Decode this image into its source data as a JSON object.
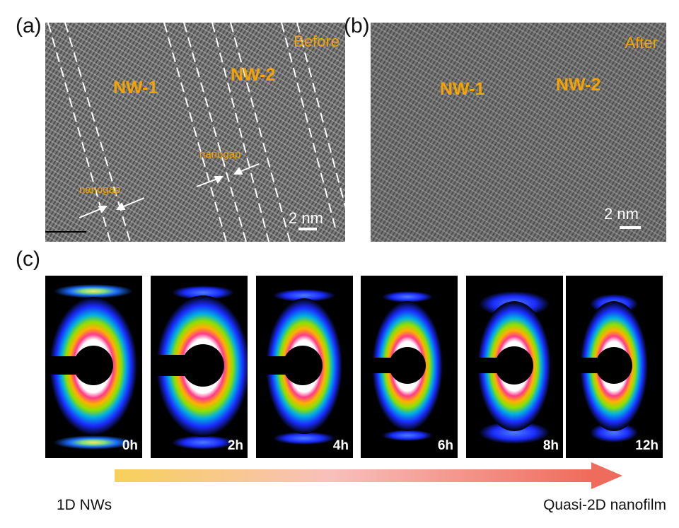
{
  "panels": {
    "a": {
      "letter": "(a)",
      "tag": "Before",
      "labels": [
        "NW-1",
        "NW-2"
      ],
      "gap_labels": [
        "nanogap",
        "nanogap"
      ],
      "scale": "2 nm"
    },
    "b": {
      "letter": "(b)",
      "tag": "After",
      "labels": [
        "NW-1",
        "NW-2"
      ],
      "scale": "2 nm"
    },
    "c": {
      "letter": "(c)",
      "times": [
        "0h",
        "2h",
        "4h",
        "6h",
        "8h",
        "12h"
      ]
    }
  },
  "arrow": {
    "start_label": "1D NWs",
    "end_label": "Quasi-2D nanofilm",
    "gradient_start": "#f7d15a",
    "gradient_end": "#ef6b5b"
  }
}
